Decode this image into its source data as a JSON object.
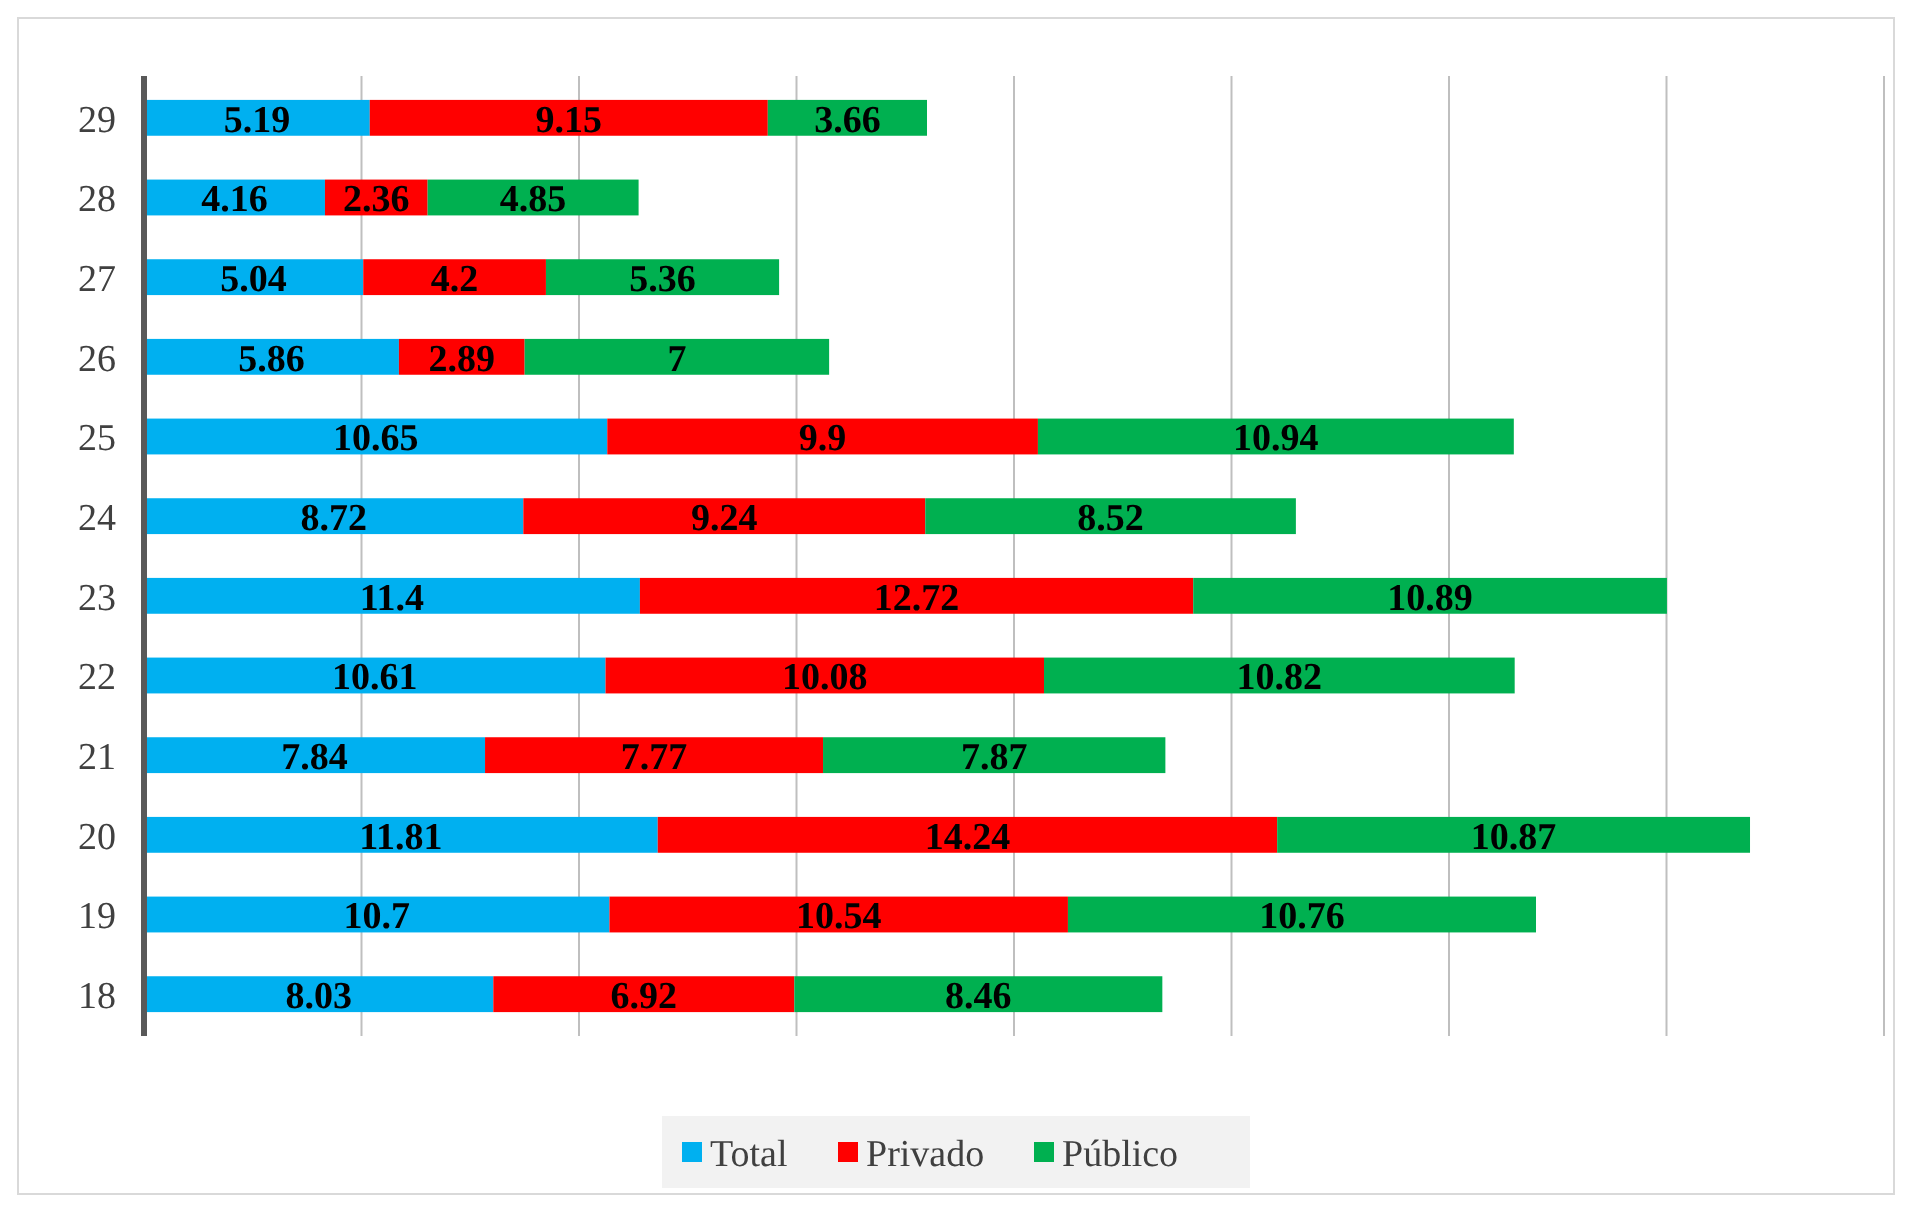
{
  "chart_data": {
    "type": "bar",
    "orientation": "horizontal",
    "stacked": true,
    "categories": [
      "29",
      "28",
      "27",
      "26",
      "25",
      "24",
      "23",
      "22",
      "21",
      "20",
      "19",
      "18"
    ],
    "series": [
      {
        "name": "Total",
        "color": "#00b0f0",
        "values": [
          5.19,
          4.16,
          5.04,
          5.86,
          10.65,
          8.72,
          11.4,
          10.61,
          7.84,
          11.81,
          10.7,
          8.03
        ]
      },
      {
        "name": "Privado",
        "color": "#ff0000",
        "values": [
          9.15,
          2.36,
          4.2,
          2.89,
          9.9,
          9.24,
          12.72,
          10.08,
          7.77,
          14.24,
          10.54,
          6.92
        ]
      },
      {
        "name": "Público",
        "color": "#00b050",
        "values": [
          3.66,
          4.85,
          5.36,
          7,
          10.94,
          8.52,
          10.89,
          10.82,
          7.87,
          10.87,
          10.76,
          8.46
        ]
      }
    ],
    "xlim": [
      0,
      40
    ],
    "xticks": [
      {
        "value": 0,
        "label": null
      },
      {
        "value": 5,
        "label": null
      },
      {
        "value": 10,
        "label": null
      },
      {
        "value": 15,
        "label": null
      },
      {
        "value": 20,
        "label": null
      },
      {
        "value": 25,
        "label": null
      },
      {
        "value": 30,
        "label": null
      },
      {
        "value": 35,
        "label": null
      },
      {
        "value": 40,
        "label": null
      }
    ],
    "tick_labels": "y",
    "grid": "x",
    "legend": "bottom",
    "data_labels": true
  }
}
